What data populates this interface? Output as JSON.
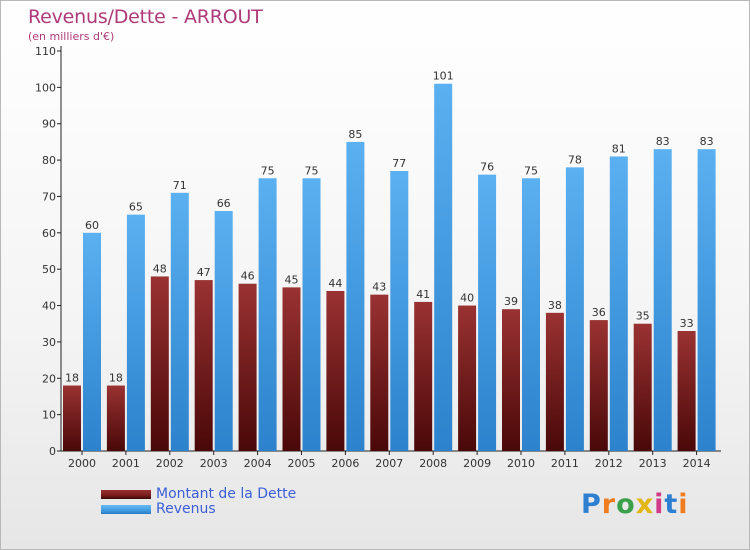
{
  "title": "Revenus/Dette - ARROUT",
  "subtitle": "(en milliers d'€)",
  "chart_data": {
    "type": "bar",
    "categories": [
      "2000",
      "2001",
      "2002",
      "2003",
      "2004",
      "2005",
      "2006",
      "2007",
      "2008",
      "2009",
      "2010",
      "2011",
      "2012",
      "2013",
      "2014"
    ],
    "series": [
      {
        "name": "Montant de la Dette",
        "values": [
          18,
          18,
          48,
          47,
          46,
          45,
          44,
          43,
          41,
          40,
          39,
          38,
          36,
          35,
          33
        ],
        "color": "#7a1c1c"
      },
      {
        "name": "Revenus",
        "values": [
          60,
          65,
          71,
          66,
          75,
          75,
          85,
          77,
          101,
          76,
          75,
          78,
          81,
          83,
          83
        ],
        "color": "#3e9be0"
      }
    ],
    "ylim": [
      0,
      110
    ],
    "yticks": [
      0,
      10,
      20,
      30,
      40,
      50,
      60,
      70,
      80,
      90,
      100,
      110
    ],
    "grid": false,
    "legend_position": "bottom-left"
  },
  "legend": [
    {
      "label": "Montant de la Dette",
      "color": "#7a1c1c"
    },
    {
      "label": "Revenus",
      "color": "#3e9be0"
    }
  ],
  "logo": {
    "letters": [
      "P",
      "r",
      "o",
      "x",
      "i",
      "t",
      "i"
    ],
    "colors": [
      "#2e7fd1",
      "#ef7d1f",
      "#3aa04a",
      "#e2b614",
      "#d23a8a",
      "#2e7fd1",
      "#ef7d1f"
    ]
  }
}
